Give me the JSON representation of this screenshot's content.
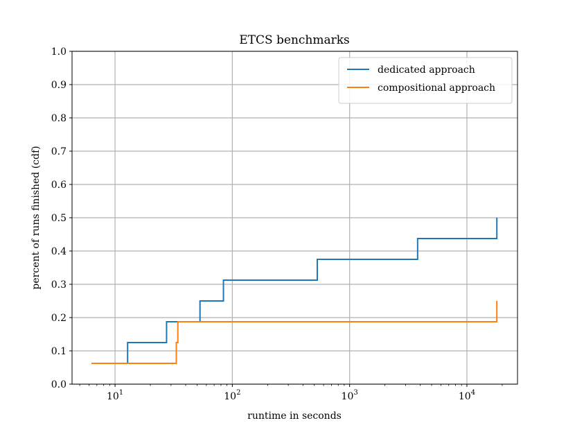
{
  "chart_data": {
    "type": "line",
    "title": "ETCS benchmarks",
    "xlabel": "runtime in seconds",
    "ylabel": "percent of runs finished (cdf)",
    "x_scale": "log",
    "xlim": [
      4.3,
      27000
    ],
    "ylim": [
      0.0,
      1.0
    ],
    "x_ticks": [
      {
        "base": "10",
        "exp": "1",
        "value": 10
      },
      {
        "base": "10",
        "exp": "2",
        "value": 100
      },
      {
        "base": "10",
        "exp": "3",
        "value": 1000
      },
      {
        "base": "10",
        "exp": "4",
        "value": 10000
      }
    ],
    "y_ticks": [
      "0.0",
      "0.1",
      "0.2",
      "0.3",
      "0.4",
      "0.5",
      "0.6",
      "0.7",
      "0.8",
      "0.9",
      "1.0"
    ],
    "grid": true,
    "legend_position": "top-right",
    "series": [
      {
        "name": "dedicated approach",
        "color": "#1f77b4",
        "step": "post",
        "x": [
          8,
          12.8,
          27.5,
          53,
          84,
          530,
          3800,
          18000
        ],
        "y": [
          0.0625,
          0.125,
          0.1875,
          0.25,
          0.3125,
          0.375,
          0.4375,
          0.5
        ]
      },
      {
        "name": "compositional approach",
        "color": "#ff7f0e",
        "step": "post",
        "x": [
          6.3,
          33.3,
          34.3,
          18000
        ],
        "y": [
          0.0625,
          0.125,
          0.1875,
          0.25
        ]
      }
    ]
  }
}
